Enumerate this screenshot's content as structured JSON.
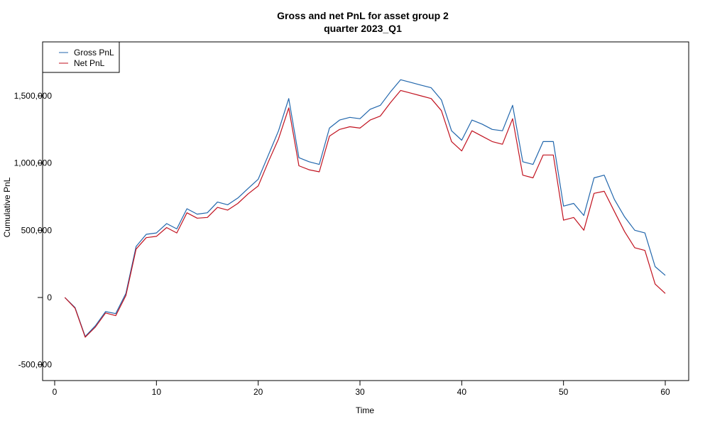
{
  "chart_data": {
    "type": "line",
    "title": "Gross and net PnL for asset group 2",
    "subtitle": "quarter 2023_Q1",
    "xlabel": "Time",
    "ylabel": "Cumulative PnL",
    "xlim": [
      1,
      60
    ],
    "ylim": [
      -500000,
      1650000
    ],
    "x_ticks": [
      0,
      10,
      20,
      30,
      40,
      50,
      60
    ],
    "x_tick_labels": [
      "0",
      "10",
      "20",
      "30",
      "40",
      "50",
      "60"
    ],
    "y_ticks": [
      -500000,
      0,
      500000,
      1000000,
      1500000
    ],
    "y_tick_labels": [
      "-500,000",
      "0",
      "500,000",
      "1,000,000",
      "1,500,000"
    ],
    "grid": false,
    "legend_position": "top-left",
    "x": [
      1,
      2,
      3,
      4,
      5,
      6,
      7,
      8,
      9,
      10,
      11,
      12,
      13,
      14,
      15,
      16,
      17,
      18,
      19,
      20,
      21,
      22,
      23,
      24,
      25,
      26,
      27,
      28,
      29,
      30,
      31,
      32,
      33,
      34,
      35,
      36,
      37,
      38,
      39,
      40,
      41,
      42,
      43,
      44,
      45,
      46,
      47,
      48,
      49,
      50,
      51,
      52,
      53,
      54,
      55,
      56,
      57,
      58,
      59,
      60
    ],
    "series": [
      {
        "name": "Gross PnL",
        "color": "#2166ac",
        "values": [
          0,
          -75000,
          -290000,
          -210000,
          -105000,
          -120000,
          30000,
          380000,
          470000,
          480000,
          550000,
          510000,
          660000,
          620000,
          630000,
          710000,
          690000,
          740000,
          810000,
          880000,
          1060000,
          1240000,
          1480000,
          1040000,
          1010000,
          990000,
          1260000,
          1320000,
          1340000,
          1330000,
          1400000,
          1430000,
          1530000,
          1620000,
          1600000,
          1580000,
          1560000,
          1470000,
          1240000,
          1170000,
          1320000,
          1290000,
          1250000,
          1240000,
          1430000,
          1010000,
          990000,
          1160000,
          1160000,
          680000,
          700000,
          610000,
          890000,
          910000,
          730000,
          600000,
          500000,
          480000,
          230000,
          165000
        ]
      },
      {
        "name": "Net PnL",
        "color": "#c1121f",
        "values": [
          0,
          -80000,
          -295000,
          -220000,
          -115000,
          -135000,
          15000,
          360000,
          445000,
          455000,
          520000,
          480000,
          630000,
          590000,
          595000,
          670000,
          650000,
          700000,
          770000,
          830000,
          1010000,
          1180000,
          1410000,
          980000,
          950000,
          935000,
          1200000,
          1250000,
          1270000,
          1260000,
          1320000,
          1350000,
          1450000,
          1540000,
          1520000,
          1500000,
          1480000,
          1390000,
          1160000,
          1090000,
          1240000,
          1200000,
          1160000,
          1140000,
          1330000,
          910000,
          890000,
          1060000,
          1060000,
          575000,
          595000,
          500000,
          775000,
          790000,
          640000,
          490000,
          370000,
          350000,
          100000,
          30000
        ]
      }
    ]
  }
}
